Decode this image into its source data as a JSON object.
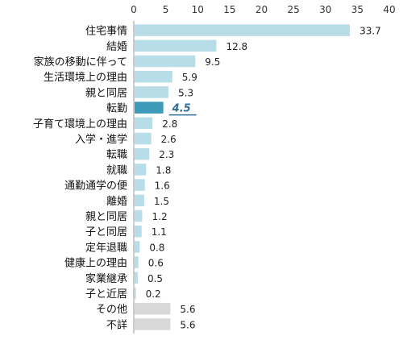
{
  "chart_data": {
    "type": "bar",
    "orientation": "horizontal",
    "categories": [
      "住宅事情",
      "結婚",
      "家族の移動に伴って",
      "生活環境上の理由",
      "親と同居",
      "転勤",
      "子育て環境上の理由",
      "入学・進学",
      "転職",
      "就職",
      "通勤通学の便",
      "離婚",
      "親と同居",
      "子と同居",
      "定年退職",
      "健康上の理由",
      "家業継承",
      "子と近居",
      "その他",
      "不詳"
    ],
    "values": [
      33.7,
      12.8,
      9.5,
      5.9,
      5.3,
      4.5,
      2.8,
      2.6,
      2.3,
      1.8,
      1.6,
      1.5,
      1.2,
      1.1,
      0.8,
      0.6,
      0.5,
      0.2,
      5.6,
      5.6
    ],
    "value_labels": [
      "33.7",
      "12.8",
      "9.5",
      "5.9",
      "5.3",
      "4.5",
      "2.8",
      "2.6",
      "2.3",
      "1.8",
      "1.6",
      "1.5",
      "1.2",
      "1.1",
      "0.8",
      "0.6",
      "0.5",
      "0.2",
      "5.6",
      "5.6"
    ],
    "x_ticks": [
      "0",
      "5",
      "10",
      "15",
      "20",
      "25",
      "30",
      "35",
      "40"
    ],
    "xlim": [
      0,
      40
    ],
    "axis_position": "top",
    "grid": false,
    "highlight_index": 5,
    "colors": {
      "bar": "#b7dde8",
      "highlight": "#3c9ab8",
      "highlight_label": "#2f6e93",
      "other": "#d8d8d8",
      "axis": "#999999"
    },
    "other_categories": [
      "その他",
      "不詳"
    ]
  }
}
